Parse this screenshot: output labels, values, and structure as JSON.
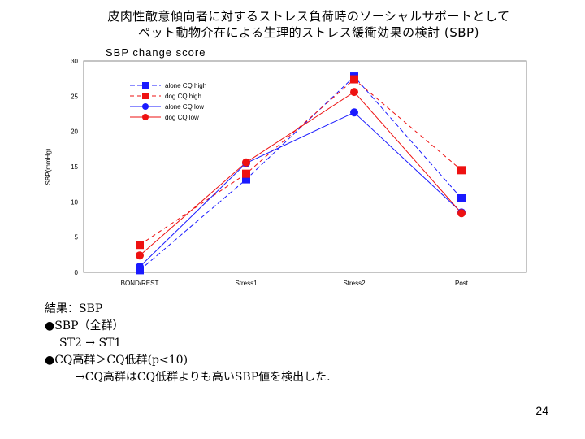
{
  "slide": {
    "title_line1": "皮肉性敵意傾向者に対するストレス負荷時のソーシャルサポートとして",
    "title_line2": "ペット動物介在による生理的ストレス緩衝効果の検討 (SBP)",
    "page_number": "24"
  },
  "results": {
    "line1": "結果：SBP",
    "line2": "●SBP（全群）",
    "line3": "ST2 → ST1",
    "line4": "●CQ高群＞CQ低群(p<10)",
    "line5": "→CQ高群はCQ低群よりも高いSBP値を検出した."
  },
  "chart_data": {
    "type": "line",
    "title": "SBP change score",
    "xlabel": "",
    "ylabel": "SBP(mmHg)",
    "categories": [
      "BOND/REST",
      "Stress1",
      "Stress2",
      "Post"
    ],
    "ylim": [
      0,
      30
    ],
    "yticks": [
      0,
      5,
      10,
      15,
      20,
      25,
      30
    ],
    "grid": false,
    "legend_position": "top-left",
    "series": [
      {
        "name": "alone CQ high",
        "values": [
          0.3,
          13.2,
          27.8,
          10.5
        ],
        "color": "#1a1aff",
        "marker": "square",
        "dash": "6,3"
      },
      {
        "name": "dog CQ high",
        "values": [
          3.9,
          14.0,
          27.4,
          14.5
        ],
        "color": "#ee1111",
        "marker": "square",
        "dash": "5,4"
      },
      {
        "name": "alone CQ low",
        "values": [
          0.8,
          15.5,
          22.7,
          8.5
        ],
        "color": "#1a1aff",
        "marker": "circle",
        "dash": ""
      },
      {
        "name": "dog CQ low",
        "values": [
          2.4,
          15.6,
          25.6,
          8.4
        ],
        "color": "#ee1111",
        "marker": "circle",
        "dash": ""
      }
    ]
  }
}
